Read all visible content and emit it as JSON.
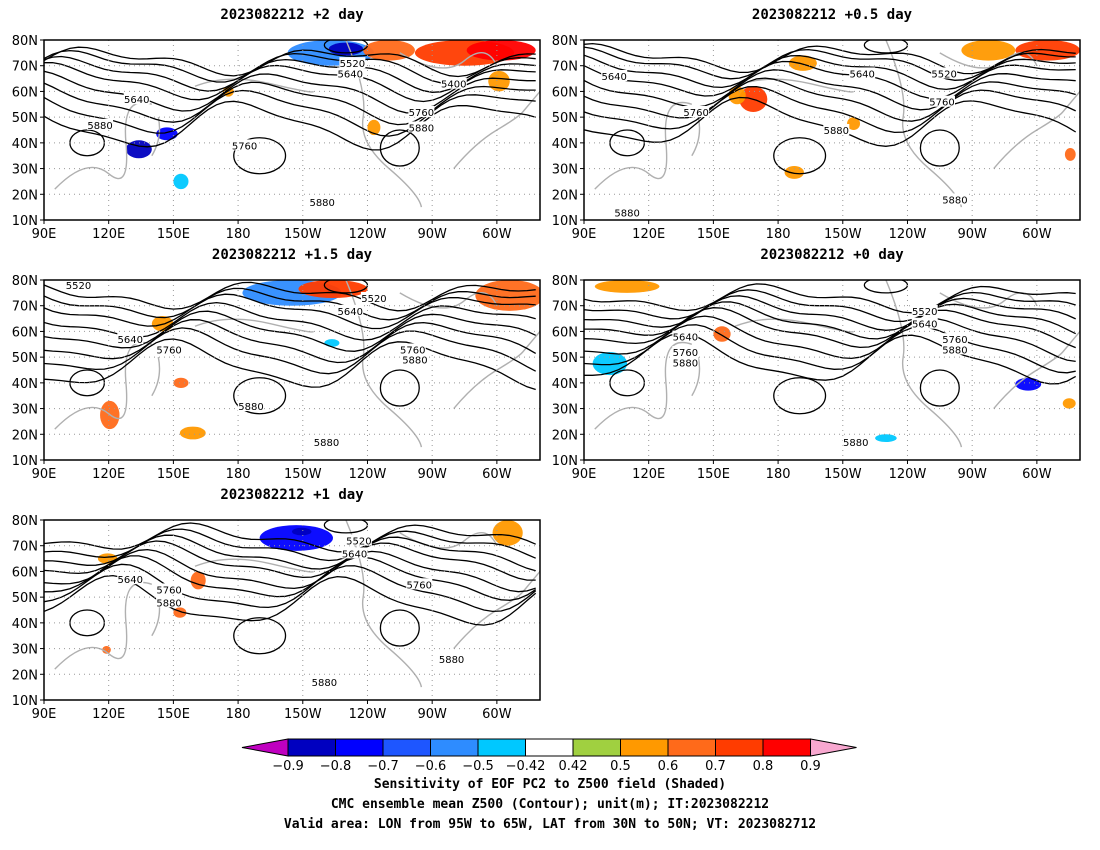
{
  "figure": {
    "footer": [
      "Sensitivity of EOF PC2 to Z500 field (Shaded)",
      "CMC ensemble mean Z500 (Contour); unit(m); IT:2023082212",
      "Valid area: LON from 95W to 65W, LAT from 30N to 50N; VT: 2023082712"
    ]
  },
  "colors": {
    "coast": "#b0b0b0",
    "contour": "#000000",
    "grid": "#999999"
  },
  "chart_data": [
    {
      "type": "heatmap",
      "title": "2023082212 +2 day",
      "x_tick_labels": [
        "90E",
        "120E",
        "150E",
        "180",
        "150W",
        "120W",
        "90W",
        "60W"
      ],
      "y_tick_labels": [
        "10N",
        "20N",
        "30N",
        "40N",
        "50N",
        "60N",
        "70N",
        "80N"
      ],
      "xlim": [
        90,
        320
      ],
      "ylim": [
        10,
        80
      ],
      "contour_labels": [
        {
          "text": "5520",
          "lon": 233,
          "lat": 71
        },
        {
          "text": "5640",
          "lon": 232,
          "lat": 67
        },
        {
          "text": "5400",
          "lon": 280,
          "lat": 63
        },
        {
          "text": "5640",
          "lon": 133,
          "lat": 57
        },
        {
          "text": "5760",
          "lon": 265,
          "lat": 52
        },
        {
          "text": "5880",
          "lon": 116,
          "lat": 47
        },
        {
          "text": "5880",
          "lon": 265,
          "lat": 46
        },
        {
          "text": "5760",
          "lon": 183,
          "lat": 39
        },
        {
          "text": "5880",
          "lon": 219,
          "lat": 17
        }
      ],
      "sensitivity_patches": [
        {
          "lon": [
            203,
            243
          ],
          "lat": [
            70,
            80
          ],
          "value": -0.6
        },
        {
          "lon": [
            222,
            238
          ],
          "lat": [
            74,
            79
          ],
          "value": -0.9
        },
        {
          "lon": [
            238,
            262
          ],
          "lat": [
            72,
            80
          ],
          "value": 0.6
        },
        {
          "lon": [
            262,
            308
          ],
          "lat": [
            70,
            80
          ],
          "value": 0.7
        },
        {
          "lon": [
            286,
            318
          ],
          "lat": [
            72,
            80
          ],
          "value": 0.8
        },
        {
          "lon": [
            296,
            306
          ],
          "lat": [
            60,
            68
          ],
          "value": 0.5
        },
        {
          "lon": [
            142,
            152
          ],
          "lat": [
            41,
            46
          ],
          "value": -0.8
        },
        {
          "lon": [
            128,
            140
          ],
          "lat": [
            34,
            41
          ],
          "value": -0.9
        },
        {
          "lon": [
            150,
            157
          ],
          "lat": [
            22,
            28
          ],
          "value": -0.5
        },
        {
          "lon": [
            240,
            246
          ],
          "lat": [
            43,
            49
          ],
          "value": 0.5
        },
        {
          "lon": [
            173,
            178
          ],
          "lat": [
            58,
            62
          ],
          "value": 0.5
        }
      ]
    },
    {
      "type": "heatmap",
      "title": "2023082212 +0.5 day",
      "x_tick_labels": [
        "90E",
        "120E",
        "150E",
        "180",
        "150W",
        "120W",
        "90W",
        "60W"
      ],
      "y_tick_labels": [
        "10N",
        "20N",
        "30N",
        "40N",
        "50N",
        "60N",
        "70N",
        "80N"
      ],
      "xlim": [
        90,
        320
      ],
      "ylim": [
        10,
        80
      ],
      "contour_labels": [
        {
          "text": "5640",
          "lon": 104,
          "lat": 66
        },
        {
          "text": "5640",
          "lon": 219,
          "lat": 67
        },
        {
          "text": "5520",
          "lon": 257,
          "lat": 67
        },
        {
          "text": "5760",
          "lon": 256,
          "lat": 56
        },
        {
          "text": "5760",
          "lon": 142,
          "lat": 52
        },
        {
          "text": "5880",
          "lon": 207,
          "lat": 45
        },
        {
          "text": "5880",
          "lon": 110,
          "lat": 13
        },
        {
          "text": "5880",
          "lon": 262,
          "lat": 18
        }
      ],
      "sensitivity_patches": [
        {
          "lon": [
            162,
            175
          ],
          "lat": [
            52,
            62
          ],
          "value": 0.7
        },
        {
          "lon": [
            157,
            165
          ],
          "lat": [
            55,
            62
          ],
          "value": 0.5
        },
        {
          "lon": [
            290,
            320
          ],
          "lat": [
            72,
            80
          ],
          "value": 0.7
        },
        {
          "lon": [
            265,
            290
          ],
          "lat": [
            72,
            80
          ],
          "value": 0.5
        },
        {
          "lon": [
            313,
            318
          ],
          "lat": [
            33,
            38
          ],
          "value": 0.6
        },
        {
          "lon": [
            185,
            198
          ],
          "lat": [
            68,
            74
          ],
          "value": 0.5
        },
        {
          "lon": [
            183,
            192
          ],
          "lat": [
            26,
            31
          ],
          "value": 0.5
        },
        {
          "lon": [
            212,
            218
          ],
          "lat": [
            45,
            50
          ],
          "value": 0.5
        }
      ]
    },
    {
      "type": "heatmap",
      "title": "2023082212 +1.5 day",
      "x_tick_labels": [
        "90E",
        "120E",
        "150E",
        "180",
        "150W",
        "120W",
        "90W",
        "60W"
      ],
      "y_tick_labels": [
        "10N",
        "20N",
        "30N",
        "40N",
        "50N",
        "60N",
        "70N",
        "80N"
      ],
      "xlim": [
        90,
        320
      ],
      "ylim": [
        10,
        80
      ],
      "contour_labels": [
        {
          "text": "5520",
          "lon": 106,
          "lat": 78
        },
        {
          "text": "5520",
          "lon": 243,
          "lat": 73
        },
        {
          "text": "5640",
          "lon": 232,
          "lat": 68
        },
        {
          "text": "5640",
          "lon": 130,
          "lat": 57
        },
        {
          "text": "5760",
          "lon": 148,
          "lat": 53
        },
        {
          "text": "5760",
          "lon": 261,
          "lat": 53
        },
        {
          "text": "5880",
          "lon": 262,
          "lat": 49
        },
        {
          "text": "5880",
          "lon": 186,
          "lat": 31
        },
        {
          "text": "5880",
          "lon": 221,
          "lat": 17
        }
      ],
      "sensitivity_patches": [
        {
          "lon": [
            182,
            228
          ],
          "lat": [
            70,
            80
          ],
          "value": -0.6
        },
        {
          "lon": [
            208,
            240
          ],
          "lat": [
            73,
            80
          ],
          "value": 0.7
        },
        {
          "lon": [
            290,
            322
          ],
          "lat": [
            68,
            80
          ],
          "value": 0.6
        },
        {
          "lon": [
            116,
            125
          ],
          "lat": [
            22,
            33
          ],
          "value": 0.6
        },
        {
          "lon": [
            150,
            157
          ],
          "lat": [
            38,
            42
          ],
          "value": 0.6
        },
        {
          "lon": [
            153,
            165
          ],
          "lat": [
            18,
            23
          ],
          "value": 0.5
        },
        {
          "lon": [
            140,
            150
          ],
          "lat": [
            60,
            66
          ],
          "value": 0.5
        },
        {
          "lon": [
            220,
            227
          ],
          "lat": [
            54,
            57
          ],
          "value": -0.5
        }
      ]
    },
    {
      "type": "heatmap",
      "title": "2023082212 +0 day",
      "x_tick_labels": [
        "90E",
        "120E",
        "150E",
        "180",
        "150W",
        "120W",
        "90W",
        "60W"
      ],
      "y_tick_labels": [
        "10N",
        "20N",
        "30N",
        "40N",
        "50N",
        "60N",
        "70N",
        "80N"
      ],
      "xlim": [
        90,
        320
      ],
      "ylim": [
        10,
        80
      ],
      "contour_labels": [
        {
          "text": "5520",
          "lon": 248,
          "lat": 68
        },
        {
          "text": "5640",
          "lon": 248,
          "lat": 63
        },
        {
          "text": "5640",
          "lon": 137,
          "lat": 58
        },
        {
          "text": "5760",
          "lon": 262,
          "lat": 57
        },
        {
          "text": "5760",
          "lon": 137,
          "lat": 52
        },
        {
          "text": "5880",
          "lon": 262,
          "lat": 53
        },
        {
          "text": "5880",
          "lon": 137,
          "lat": 48
        },
        {
          "text": "5880",
          "lon": 216,
          "lat": 17
        }
      ],
      "sensitivity_patches": [
        {
          "lon": [
            94,
            110
          ],
          "lat": [
            43,
            52
          ],
          "value": -0.5
        },
        {
          "lon": [
            290,
            302
          ],
          "lat": [
            37,
            42
          ],
          "value": -0.8
        },
        {
          "lon": [
            95,
            125
          ],
          "lat": [
            75,
            80
          ],
          "value": 0.5
        },
        {
          "lon": [
            150,
            158
          ],
          "lat": [
            56,
            62
          ],
          "value": 0.6
        },
        {
          "lon": [
            312,
            318
          ],
          "lat": [
            30,
            34
          ],
          "value": 0.5
        },
        {
          "lon": [
            225,
            235
          ],
          "lat": [
            17,
            20
          ],
          "value": -0.5
        }
      ]
    },
    {
      "type": "heatmap",
      "title": "2023082212 +1 day",
      "x_tick_labels": [
        "90E",
        "120E",
        "150E",
        "180",
        "150W",
        "120W",
        "90W",
        "60W"
      ],
      "y_tick_labels": [
        "10N",
        "20N",
        "30N",
        "40N",
        "50N",
        "60N",
        "70N",
        "80N"
      ],
      "xlim": [
        90,
        320
      ],
      "ylim": [
        10,
        80
      ],
      "contour_labels": [
        {
          "text": "5520",
          "lon": 236,
          "lat": 72
        },
        {
          "text": "5640",
          "lon": 234,
          "lat": 67
        },
        {
          "text": "5640",
          "lon": 130,
          "lat": 57
        },
        {
          "text": "5760",
          "lon": 148,
          "lat": 53
        },
        {
          "text": "5760",
          "lon": 264,
          "lat": 55
        },
        {
          "text": "5880",
          "lon": 148,
          "lat": 48
        },
        {
          "text": "5880",
          "lon": 279,
          "lat": 26
        },
        {
          "text": "5880",
          "lon": 220,
          "lat": 17
        }
      ],
      "sensitivity_patches": [
        {
          "lon": [
            190,
            224
          ],
          "lat": [
            68,
            78
          ],
          "value": -0.8
        },
        {
          "lon": [
            205,
            214
          ],
          "lat": [
            74,
            77
          ],
          "value": -0.9
        },
        {
          "lon": [
            298,
            312
          ],
          "lat": [
            70,
            80
          ],
          "value": 0.5
        },
        {
          "lon": [
            158,
            165
          ],
          "lat": [
            53,
            60
          ],
          "value": 0.6
        },
        {
          "lon": [
            150,
            156
          ],
          "lat": [
            42,
            46
          ],
          "value": 0.6
        },
        {
          "lon": [
            117,
            121
          ],
          "lat": [
            28,
            31
          ],
          "value": 0.6
        },
        {
          "lon": [
            115,
            124
          ],
          "lat": [
            63,
            67
          ],
          "value": 0.5
        }
      ]
    }
  ],
  "colorbar": {
    "tick_labels": [
      "−0.9",
      "−0.8",
      "−0.7",
      "−0.6",
      "−0.5",
      "−0.42",
      "0.42",
      "0.5",
      "0.6",
      "0.7",
      "0.8",
      "0.9"
    ],
    "colors": [
      "#c000c0",
      "#0000c0",
      "#0000ff",
      "#1e56ff",
      "#2e8cff",
      "#00c8ff",
      "#ffffff",
      "#a0d040",
      "#ff9900",
      "#ff6a1a",
      "#ff3c00",
      "#ff0000",
      "#f8a8d0"
    ]
  }
}
